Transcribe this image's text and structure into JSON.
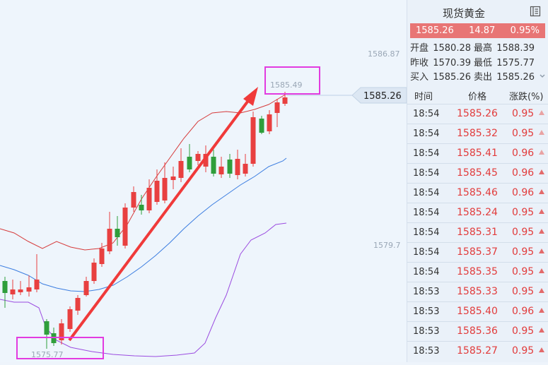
{
  "chart": {
    "price_labels": {
      "high_axis": "1586.87",
      "low_axis": "1579.7",
      "current": "1585.26",
      "peak": "1585.49",
      "trough": "1575.77"
    },
    "colors": {
      "up": "#e84040",
      "down": "#2f9e3b",
      "boll_upper": "#d63b3b",
      "boll_mid": "#3b7de0",
      "boll_lower": "#9b4ce0",
      "arrow": "#f03a3a",
      "highlight": "#e23be0"
    }
  },
  "panel": {
    "title": "现货黄金",
    "quote": {
      "price": "1585.26",
      "change": "14.87",
      "percent": "0.95%"
    },
    "info": [
      {
        "l1": "开盘",
        "v1": "1580.28",
        "l2": "最高",
        "v2": "1588.39"
      },
      {
        "l1": "昨收",
        "v1": "1570.39",
        "l2": "最低",
        "v2": "1575.77"
      },
      {
        "l1": "买入",
        "v1": "1585.26",
        "l2": "卖出",
        "v2": "1585.26"
      }
    ],
    "headers": {
      "time": "时间",
      "price": "价格",
      "change": "涨跌(%)"
    },
    "ticks": [
      {
        "time": "18:54",
        "price": "1585.26",
        "change": "0.95",
        "arrow": "light"
      },
      {
        "time": "18:54",
        "price": "1585.32",
        "change": "0.95",
        "arrow": "light"
      },
      {
        "time": "18:54",
        "price": "1585.41",
        "change": "0.96",
        "arrow": "light"
      },
      {
        "time": "18:54",
        "price": "1585.45",
        "change": "0.96",
        "arrow": "dark"
      },
      {
        "time": "18:54",
        "price": "1585.46",
        "change": "0.96",
        "arrow": "dark"
      },
      {
        "time": "18:54",
        "price": "1585.24",
        "change": "0.95",
        "arrow": "dark"
      },
      {
        "time": "18:54",
        "price": "1585.31",
        "change": "0.95",
        "arrow": "dark"
      },
      {
        "time": "18:54",
        "price": "1585.37",
        "change": "0.95",
        "arrow": "dark"
      },
      {
        "time": "18:54",
        "price": "1585.35",
        "change": "0.95",
        "arrow": "dark"
      },
      {
        "time": "18:53",
        "price": "1585.33",
        "change": "0.95",
        "arrow": "dark"
      },
      {
        "time": "18:53",
        "price": "1585.40",
        "change": "0.96",
        "arrow": "dark"
      },
      {
        "time": "18:53",
        "price": "1585.36",
        "change": "0.95",
        "arrow": "dark"
      },
      {
        "time": "18:53",
        "price": "1585.27",
        "change": "0.95",
        "arrow": "dark"
      }
    ]
  }
}
